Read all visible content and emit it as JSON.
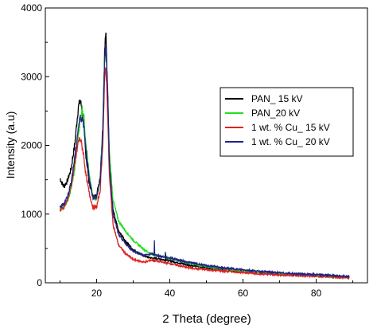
{
  "chart_data": {
    "type": "line",
    "title": "",
    "xlabel": "2 Theta (degree)",
    "ylabel": "Intensity (a.u)",
    "xlim": [
      6,
      94
    ],
    "ylim": [
      0,
      4000
    ],
    "xticks": [
      20,
      40,
      60,
      80
    ],
    "yticks": [
      0,
      1000,
      2000,
      3000,
      4000
    ],
    "grid": false,
    "legend_position": "right",
    "series": [
      {
        "name": "PAN_ 15 kV",
        "color": "#000000",
        "x": [
          10,
          11,
          12,
          13,
          14,
          15,
          15.5,
          16,
          16.5,
          17,
          18,
          19,
          20,
          21,
          21.7,
          22.2,
          22.5,
          22.9,
          23.5,
          24.5,
          26,
          28,
          30,
          33,
          35,
          37,
          40,
          45,
          50,
          55,
          60,
          65,
          70,
          75,
          80,
          85,
          89
        ],
        "y": [
          1520,
          1400,
          1480,
          1650,
          2000,
          2550,
          2650,
          2550,
          2300,
          1900,
          1450,
          1250,
          1270,
          1550,
          2300,
          3350,
          3650,
          3000,
          1800,
          1050,
          750,
          600,
          480,
          390,
          360,
          350,
          320,
          260,
          220,
          190,
          170,
          150,
          130,
          120,
          110,
          95,
          80
        ]
      },
      {
        "name": "PAN_20 kV",
        "color": "#22dd22",
        "x": [
          10,
          11,
          12,
          13,
          14,
          15,
          15.5,
          16,
          16.5,
          17,
          18,
          19,
          20,
          21,
          21.7,
          22.2,
          22.5,
          22.9,
          23.5,
          24.5,
          26,
          28,
          30,
          33,
          35,
          37,
          40,
          45,
          50,
          55,
          60,
          65,
          70,
          75,
          80,
          85,
          89
        ],
        "y": [
          1080,
          1100,
          1180,
          1350,
          1650,
          2150,
          2350,
          2550,
          2450,
          2100,
          1550,
          1250,
          1230,
          1500,
          2250,
          3250,
          3400,
          2950,
          1900,
          1200,
          900,
          750,
          620,
          480,
          420,
          390,
          360,
          290,
          240,
          200,
          175,
          150,
          130,
          115,
          105,
          90,
          80
        ]
      },
      {
        "name": "1 wt. % Cu_ 15 kV",
        "color": "#dd2222",
        "x": [
          10,
          11,
          12,
          13,
          14,
          15,
          15.5,
          16,
          16.5,
          17,
          18,
          19,
          20,
          21,
          21.7,
          22.2,
          22.5,
          22.9,
          23.5,
          24.5,
          26,
          28,
          30,
          33,
          35,
          37,
          40,
          45,
          50,
          55,
          60,
          65,
          70,
          75,
          80,
          85,
          89
        ],
        "y": [
          1050,
          1100,
          1200,
          1400,
          1700,
          2050,
          2100,
          2000,
          1850,
          1600,
          1300,
          1100,
          1100,
          1350,
          2050,
          2950,
          3150,
          2700,
          1550,
          850,
          550,
          420,
          340,
          300,
          330,
          310,
          280,
          220,
          190,
          170,
          150,
          130,
          115,
          105,
          95,
          85,
          70
        ]
      },
      {
        "name": "1 wt. % Cu_ 20 kV",
        "color": "#222288",
        "x": [
          10,
          11,
          12,
          13,
          14,
          15,
          15.5,
          16,
          16.5,
          17,
          18,
          19,
          20,
          21,
          21.7,
          22.2,
          22.5,
          22.9,
          23.5,
          24.5,
          26,
          28,
          30,
          33,
          35,
          37,
          40,
          45,
          50,
          55,
          60,
          65,
          70,
          75,
          80,
          85,
          89
        ],
        "y": [
          1100,
          1150,
          1250,
          1450,
          1800,
          2250,
          2400,
          2400,
          2300,
          2000,
          1500,
          1250,
          1250,
          1500,
          2200,
          3250,
          3500,
          3050,
          1750,
          1000,
          700,
          560,
          460,
          400,
          420,
          390,
          360,
          300,
          250,
          215,
          190,
          165,
          145,
          130,
          120,
          105,
          90
        ]
      }
    ],
    "spikes": [
      {
        "series": 1,
        "x": 35.8,
        "y": 560
      },
      {
        "series": 3,
        "x": 35.8,
        "y": 620
      },
      {
        "series": 3,
        "x": 38.8,
        "y": 450
      },
      {
        "series": 0,
        "x": 38.9,
        "y": 420
      }
    ]
  }
}
